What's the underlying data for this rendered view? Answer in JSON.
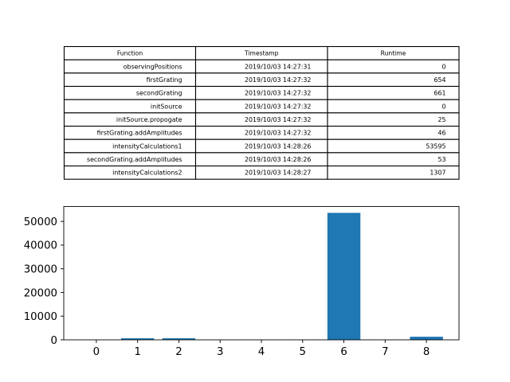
{
  "table": {
    "headers": [
      "Function",
      "Timestamp",
      "Runtime"
    ],
    "rows": [
      [
        "observingPositions",
        "2019/10/03 14:27:31",
        "0"
      ],
      [
        "firstGrating",
        "2019/10/03 14:27:32",
        "654"
      ],
      [
        "secondGrating",
        "2019/10/03 14:27:32",
        "661"
      ],
      [
        "initSource",
        "2019/10/03 14:27:32",
        "0"
      ],
      [
        "initSource.propogate",
        "2019/10/03 14:27:32",
        "25"
      ],
      [
        "firstGrating.addAmplitudes",
        "2019/10/03 14:27:32",
        "46"
      ],
      [
        "intensityCalculations1",
        "2019/10/03 14:28:26",
        "53595"
      ],
      [
        "secondGrating.addAmplitudes",
        "2019/10/03 14:28:26",
        "53"
      ],
      [
        "intensityCalculations2",
        "2019/10/03 14:28:27",
        "1307"
      ]
    ]
  },
  "chart_data": [
    {
      "type": "table",
      "columns": [
        "Function",
        "Timestamp",
        "Runtime"
      ],
      "rows": [
        [
          "observingPositions",
          "2019/10/03 14:27:31",
          0
        ],
        [
          "firstGrating",
          "2019/10/03 14:27:32",
          654
        ],
        [
          "secondGrating",
          "2019/10/03 14:27:32",
          661
        ],
        [
          "initSource",
          "2019/10/03 14:27:32",
          0
        ],
        [
          "initSource.propogate",
          "2019/10/03 14:27:32",
          25
        ],
        [
          "firstGrating.addAmplitudes",
          "2019/10/03 14:27:32",
          46
        ],
        [
          "intensityCalculations1",
          "2019/10/03 14:28:26",
          53595
        ],
        [
          "secondGrating.addAmplitudes",
          "2019/10/03 14:28:26",
          53
        ],
        [
          "intensityCalculations2",
          "2019/10/03 14:28:27",
          1307
        ]
      ]
    },
    {
      "type": "bar",
      "categories": [
        "0",
        "1",
        "2",
        "3",
        "4",
        "5",
        "6",
        "7",
        "8"
      ],
      "values": [
        0,
        654,
        661,
        0,
        25,
        46,
        53595,
        53,
        1307
      ],
      "title": "",
      "xlabel": "",
      "ylabel": "",
      "ylim": [
        0,
        56275
      ],
      "yticks": [
        0,
        10000,
        20000,
        30000,
        40000,
        50000
      ],
      "bar_color": "#1f77b4",
      "grid": false
    }
  ]
}
